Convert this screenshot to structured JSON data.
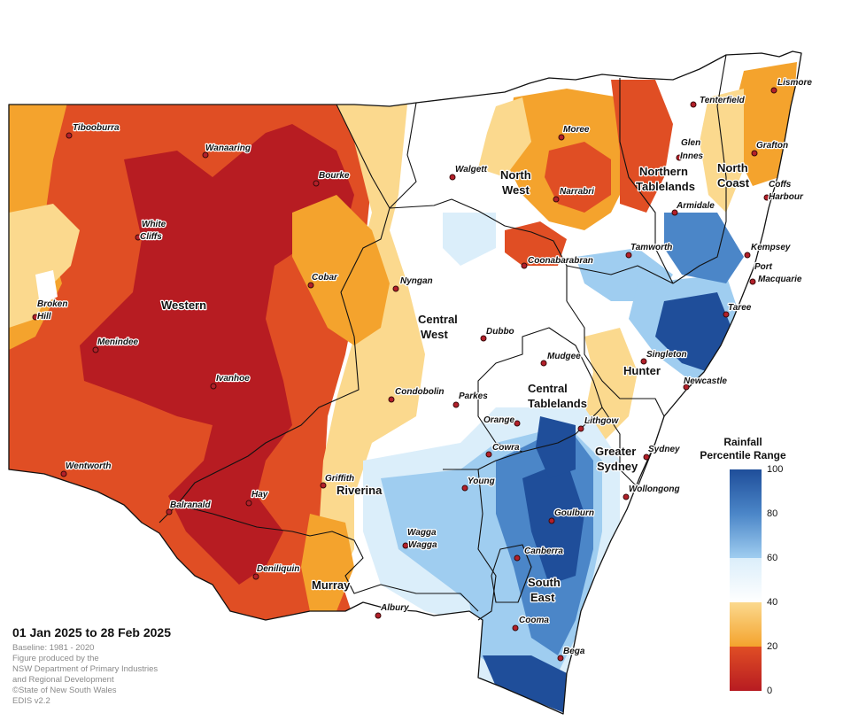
{
  "title": "01 Jan 2025 to 28 Feb 2025",
  "credits": [
    "Baseline: 1981 - 2020",
    "Figure produced by the",
    "NSW Department of Primary Industries",
    "and Regional Development",
    "©State of New South Wales",
    "EDIS v2.2"
  ],
  "legend": {
    "title_line1": "Rainfall",
    "title_line2": "Percentile Range",
    "ticks": [
      "100",
      "80",
      "60",
      "40",
      "20",
      "0"
    ],
    "classes": [
      {
        "range": "80-100",
        "color": "#1f4e9a"
      },
      {
        "range": "60-80",
        "color": "#9fcdf0"
      },
      {
        "range": "40-60",
        "color": "#ffffff"
      },
      {
        "range": "20-40",
        "color": "#fbd98e"
      },
      {
        "range": "0-20",
        "color": "#e04e24"
      }
    ],
    "bar_colors_top_to_bottom": [
      "#1f4e9a",
      "#4b86c8",
      "#9fcdf0",
      "#dbeefa",
      "#ffffff",
      "#fbd98e",
      "#f4a32d",
      "#e04e24",
      "#b71c22"
    ]
  },
  "regions": [
    {
      "id": "western",
      "label": "Western"
    },
    {
      "id": "north-west",
      "label_lines": [
        "North",
        "West"
      ]
    },
    {
      "id": "northern-tablelands",
      "label_lines": [
        "Northern",
        "Tablelands"
      ]
    },
    {
      "id": "north-coast",
      "label_lines": [
        "North",
        "Coast"
      ]
    },
    {
      "id": "central-west",
      "label_lines": [
        "Central",
        "West"
      ]
    },
    {
      "id": "central-tablelands",
      "label_lines": [
        "Central",
        "Tablelands"
      ]
    },
    {
      "id": "hunter",
      "label": "Hunter"
    },
    {
      "id": "greater-sydney",
      "label_lines": [
        "Greater",
        "Sydney"
      ]
    },
    {
      "id": "riverina",
      "label": "Riverina"
    },
    {
      "id": "murray",
      "label": "Murray"
    },
    {
      "id": "south-east",
      "label_lines": [
        "South",
        "East"
      ]
    }
  ],
  "towns": [
    {
      "id": "tibooburra",
      "label": "Tibooburra"
    },
    {
      "id": "wanaaring",
      "label": "Wanaaring"
    },
    {
      "id": "bourke",
      "label": "Bourke"
    },
    {
      "id": "white-cliffs",
      "label_lines": [
        "White",
        "Cliffs"
      ]
    },
    {
      "id": "cobar",
      "label": "Cobar"
    },
    {
      "id": "broken-hill",
      "label_lines": [
        "Broken",
        "Hill"
      ]
    },
    {
      "id": "menindee",
      "label": "Menindee"
    },
    {
      "id": "ivanhoe",
      "label": "Ivanhoe"
    },
    {
      "id": "wentworth",
      "label": "Wentworth"
    },
    {
      "id": "balranald",
      "label": "Balranald"
    },
    {
      "id": "hay",
      "label": "Hay"
    },
    {
      "id": "deniliquin",
      "label": "Deniliquin"
    },
    {
      "id": "griffith",
      "label": "Griffith"
    },
    {
      "id": "albury",
      "label": "Albury"
    },
    {
      "id": "wagga-wagga",
      "label_lines": [
        "Wagga",
        "Wagga"
      ]
    },
    {
      "id": "young",
      "label": "Young"
    },
    {
      "id": "cowra",
      "label": "Cowra"
    },
    {
      "id": "parkes",
      "label": "Parkes"
    },
    {
      "id": "condobolin",
      "label": "Condobolin"
    },
    {
      "id": "orange",
      "label": "Orange"
    },
    {
      "id": "lithgow",
      "label": "Lithgow"
    },
    {
      "id": "mudgee",
      "label": "Mudgee"
    },
    {
      "id": "dubbo",
      "label": "Dubbo"
    },
    {
      "id": "nyngan",
      "label": "Nyngan"
    },
    {
      "id": "walgett",
      "label": "Walgett"
    },
    {
      "id": "moree",
      "label": "Moree"
    },
    {
      "id": "narrabri",
      "label": "Narrabri"
    },
    {
      "id": "coonabarabran",
      "label": "Coonabarabran"
    },
    {
      "id": "tamworth",
      "label": "Tamworth"
    },
    {
      "id": "armidale",
      "label": "Armidale"
    },
    {
      "id": "glen-innes",
      "label_lines": [
        "Glen",
        "Innes"
      ]
    },
    {
      "id": "tenterfield",
      "label": "Tenterfield"
    },
    {
      "id": "lismore",
      "label": "Lismore"
    },
    {
      "id": "grafton",
      "label": "Grafton"
    },
    {
      "id": "coffs-harbour",
      "label_lines": [
        "Coffs",
        "Harbour"
      ]
    },
    {
      "id": "kempsey",
      "label": "Kempsey"
    },
    {
      "id": "port-macquarie",
      "label_lines": [
        "Port",
        "Macquarie"
      ]
    },
    {
      "id": "taree",
      "label": "Taree"
    },
    {
      "id": "singleton",
      "label": "Singleton"
    },
    {
      "id": "newcastle",
      "label": "Newcastle"
    },
    {
      "id": "sydney",
      "label": "Sydney"
    },
    {
      "id": "wollongong",
      "label": "Wollongong"
    },
    {
      "id": "goulburn",
      "label": "Goulburn"
    },
    {
      "id": "canberra",
      "label": "Canberra"
    },
    {
      "id": "cooma",
      "label": "Cooma"
    },
    {
      "id": "bega",
      "label": "Bega"
    }
  ]
}
